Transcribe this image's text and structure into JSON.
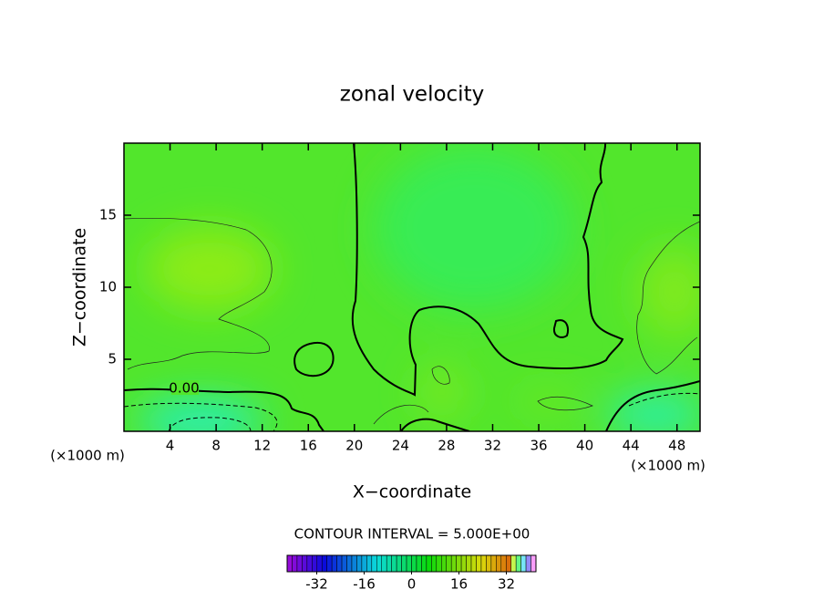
{
  "chart_data": {
    "type": "contour",
    "title": "zonal velocity",
    "x_label": "X−coordinate",
    "y_label": "Z−coordinate",
    "unit_labels": [
      "(×1000 m)",
      "(×1000 m)"
    ],
    "contour_label": "0.00",
    "footnote": "CONTOUR INTERVAL = 5.000E+00",
    "xlim": [
      0,
      50
    ],
    "xticks": [
      4,
      8,
      12,
      16,
      20,
      24,
      28,
      32,
      36,
      40,
      44,
      48
    ],
    "ylim": [
      0,
      20
    ],
    "yticks": [
      5,
      10,
      15
    ],
    "colorbar": {
      "lim": [
        -42,
        42
      ],
      "ticks": [
        -32,
        -16,
        0,
        16,
        32
      ]
    }
  }
}
